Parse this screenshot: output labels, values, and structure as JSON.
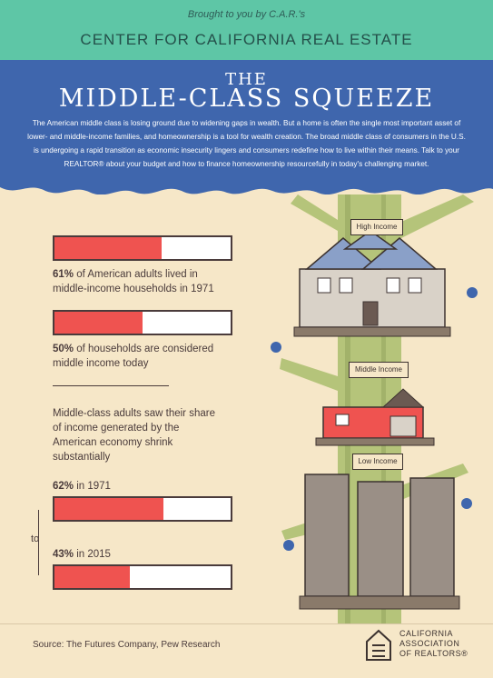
{
  "header": {
    "brought": "Brought to you by C.A.R.'s",
    "center": "CENTER FOR CALIFORNIA REAL ESTATE"
  },
  "title": {
    "the": "THE",
    "main": "MIDDLE-CLASS SQUEEZE",
    "intro": "The American middle class is losing ground due to widening gaps in wealth. But a home is often the single most important asset of lower- and middle-income families, and homeownership is a tool for wealth creation. The broad middle class of consumers in the U.S. is undergoing a rapid transition as economic insecurity lingers and consumers redefine how to live within their means. Talk to your REALTOR® about your budget and how to finance homeownership resourcefully in today's challenging market."
  },
  "stats": [
    {
      "pct_label": "61%",
      "text_a": " of American adults lived in",
      "text_b": "middle-income households in 1971",
      "value": 61
    },
    {
      "pct_label": "50%",
      "text_a": " of households are considered",
      "text_b": "middle income today",
      "value": 50
    }
  ],
  "share": {
    "intro_lines": [
      "Middle-class adults saw their share",
      "of income generated by the",
      "American economy shrink",
      "substantially"
    ],
    "items": [
      {
        "pct_label": "62%",
        "text": " in 1971",
        "value": 62
      },
      {
        "pct_label": "43%",
        "text": " in 2015",
        "value": 43
      }
    ],
    "to_label": "to"
  },
  "tree_signs": {
    "high": "High Income",
    "middle": "Middle Income",
    "low": "Low Income"
  },
  "footer": {
    "source": "Source: The Futures Company, Pew Research",
    "org_lines": [
      "CALIFORNIA",
      "ASSOCIATION",
      "OF REALTORS®"
    ]
  },
  "colors": {
    "teal": "#5ec6a6",
    "blue": "#3f66ad",
    "cream": "#f6e7c8",
    "bar_fill": "#ef5350",
    "text": "#4a3b3b"
  }
}
